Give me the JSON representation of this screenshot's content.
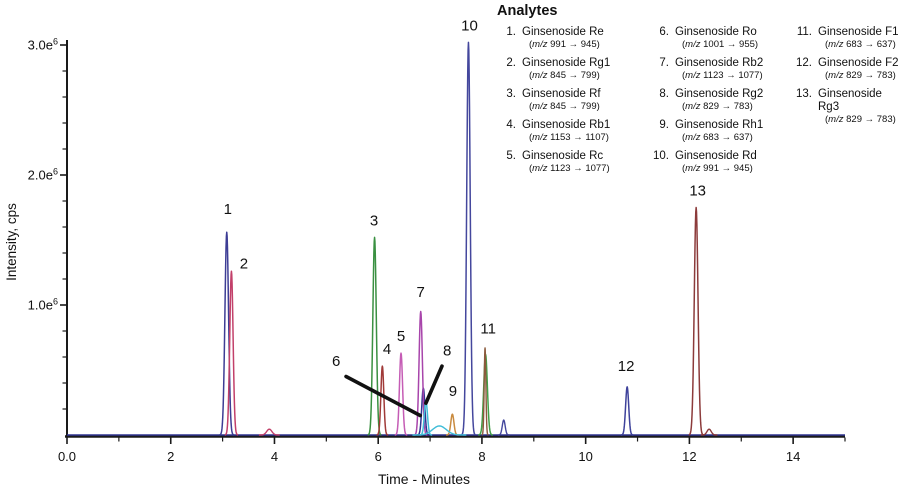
{
  "legend": {
    "title": "Analytes",
    "columns": [
      [
        {
          "num": "1.",
          "name": "Ginsenoside Re",
          "mz_prefix": "m/z",
          "mz": "991 → 945"
        },
        {
          "num": "2.",
          "name": "Ginsenoside Rg1",
          "mz_prefix": "m/z",
          "mz": "845 → 799"
        },
        {
          "num": "3.",
          "name": "Ginsenoside Rf",
          "mz_prefix": "m/z",
          "mz": "845 → 799"
        },
        {
          "num": "4.",
          "name": "Ginsenoside Rb1",
          "mz_prefix": "m/z",
          "mz": "1153 → 1107"
        },
        {
          "num": "5.",
          "name": "Ginsenoside Rc",
          "mz_prefix": "m/z",
          "mz": "1123 → 1077"
        }
      ],
      [
        {
          "num": "6.",
          "name": "Ginsenoside Ro",
          "mz_prefix": "m/z",
          "mz": "1001 → 955"
        },
        {
          "num": "7.",
          "name": "Ginsenoside Rb2",
          "mz_prefix": "m/z",
          "mz": "1123 → 1077"
        },
        {
          "num": "8.",
          "name": "Ginsenoside Rg2",
          "mz_prefix": "m/z",
          "mz": "829 → 783"
        },
        {
          "num": "9.",
          "name": "Ginsenoside Rh1",
          "mz_prefix": "m/z",
          "mz": "683 → 637"
        },
        {
          "num": "10.",
          "name": "Ginsenoside Rd",
          "mz_prefix": "m/z",
          "mz": "991 → 945"
        }
      ],
      [
        {
          "num": "11.",
          "name": "Ginsenoside F1",
          "mz_prefix": "m/z",
          "mz": "683 → 637"
        },
        {
          "num": "12.",
          "name": "Ginsenoside F2",
          "mz_prefix": "m/z",
          "mz": "829 → 783"
        },
        {
          "num": "13.",
          "name": "Ginsenoside Rg3",
          "mz_prefix": "m/z",
          "mz": "829 → 783"
        }
      ]
    ]
  },
  "chart_data": {
    "type": "line",
    "title": "Analytes",
    "xlabel": "Time - Minutes",
    "ylabel": "Intensity, cps",
    "xlim_min": [
      0,
      15
    ],
    "ylim_cps": [
      0,
      3050000
    ],
    "grid": false,
    "legend_position": "top-right",
    "x_ticks": {
      "major_values_min": [
        0,
        2,
        4,
        6,
        8,
        10,
        12,
        14
      ],
      "major_labels": [
        "0.0",
        "2",
        "4",
        "6",
        "8",
        "10",
        "12",
        "14"
      ],
      "minor_step_min": 1
    },
    "y_ticks": {
      "major_values_cps": [
        1000000,
        2000000,
        3000000
      ],
      "major_labels": [
        {
          "base": "1.0e",
          "sup": "6"
        },
        {
          "base": "2.0e",
          "sup": "6"
        },
        {
          "base": "3.0e",
          "sup": "6"
        }
      ],
      "minor_step_cps": 200000
    },
    "baseline_color": "#2F3390",
    "peaks": [
      {
        "label": "1",
        "analyte": "Ginsenoside Re",
        "transition": "m/z 991 → 945",
        "rt_min": 3.08,
        "apex_cps": 1560000,
        "sigma_min": 0.035,
        "color": "#3D3D95"
      },
      {
        "label": "2",
        "analyte": "Ginsenoside Rg1",
        "transition": "m/z 845 → 799",
        "rt_min": 3.17,
        "apex_cps": 1260000,
        "sigma_min": 0.032,
        "color": "#C2406A"
      },
      {
        "label": "3",
        "analyte": "Ginsenoside Rf",
        "transition": "m/z 845 → 799",
        "rt_min": 5.93,
        "apex_cps": 1520000,
        "sigma_min": 0.033,
        "color": "#3A9041"
      },
      {
        "label": "4",
        "analyte": "Ginsenoside Rb1",
        "transition": "m/z 1153 → 1107",
        "rt_min": 6.08,
        "apex_cps": 530000,
        "sigma_min": 0.028,
        "color": "#A03A38"
      },
      {
        "label": "5",
        "analyte": "Ginsenoside Rc",
        "transition": "m/z 1123 → 1077",
        "rt_min": 6.44,
        "apex_cps": 630000,
        "sigma_min": 0.03,
        "color": "#C55CB5"
      },
      {
        "label": "6",
        "analyte": "Ginsenoside Ro",
        "transition": "m/z 1001 → 955",
        "rt_min": 6.87,
        "apex_cps": 360000,
        "sigma_min": 0.03,
        "color": "#2E3390"
      },
      {
        "label": "7",
        "analyte": "Ginsenoside Rb2",
        "transition": "m/z 1123 → 1077",
        "rt_min": 6.82,
        "apex_cps": 950000,
        "sigma_min": 0.032,
        "color": "#A845AB"
      },
      {
        "label": "8",
        "analyte": "Ginsenoside Rg2",
        "transition": "m/z 829 → 783",
        "rt_min": 6.92,
        "apex_cps": 260000,
        "sigma_min": 0.03,
        "color": "#3FBDD8"
      },
      {
        "label": "9",
        "analyte": "Ginsenoside Rh1",
        "transition": "m/z 683 → 637",
        "rt_min": 7.43,
        "apex_cps": 160000,
        "sigma_min": 0.03,
        "color": "#C98B40"
      },
      {
        "label": "10",
        "analyte": "Ginsenoside Rd",
        "transition": "m/z 991 → 945",
        "rt_min": 7.74,
        "apex_cps": 3020000,
        "sigma_min": 0.034,
        "color": "#44479D"
      },
      {
        "label": "11",
        "analyte": "Ginsenoside F1",
        "transition": "m/z 683 → 637",
        "rt_min": 8.07,
        "apex_cps": 620000,
        "sigma_min": 0.035,
        "color": "#41A048"
      },
      {
        "label": "12",
        "analyte": "Ginsenoside F2",
        "transition": "m/z 829 → 783",
        "rt_min": 10.8,
        "apex_cps": 370000,
        "sigma_min": 0.03,
        "color": "#3E429B"
      },
      {
        "label": "13",
        "analyte": "Ginsenoside Rg3",
        "transition": "m/z 829 → 783",
        "rt_min": 12.13,
        "apex_cps": 1750000,
        "sigma_min": 0.036,
        "color": "#8C3B3B"
      }
    ],
    "minor_features": [
      {
        "rt_min": 3.9,
        "apex_cps": 45000,
        "sigma_min": 0.05,
        "color": "#C2406A"
      },
      {
        "rt_min": 7.18,
        "apex_cps": 70000,
        "sigma_min": 0.13,
        "color": "#3FBDD8"
      },
      {
        "rt_min": 8.06,
        "apex_cps": 670000,
        "sigma_min": 0.016,
        "color": "#8B5A3C"
      },
      {
        "rt_min": 8.42,
        "apex_cps": 115000,
        "sigma_min": 0.028,
        "color": "#44479D"
      },
      {
        "rt_min": 12.38,
        "apex_cps": 45000,
        "sigma_min": 0.04,
        "color": "#8C3B3B"
      }
    ],
    "annotations": [
      {
        "label": "1",
        "t_min": 3.1,
        "i_cps": 1740000
      },
      {
        "label": "2",
        "t_min": 3.41,
        "i_cps": 1320000
      },
      {
        "label": "3",
        "t_min": 5.92,
        "i_cps": 1650000
      },
      {
        "label": "4",
        "t_min": 6.17,
        "i_cps": 660000
      },
      {
        "label": "5",
        "t_min": 6.44,
        "i_cps": 760000
      },
      {
        "label": "6",
        "t_min": 5.19,
        "i_cps": 570000,
        "leader": {
          "t1_min": 5.38,
          "i1_cps": 450000,
          "t2_min": 6.81,
          "i2_cps": 150000
        }
      },
      {
        "label": "7",
        "t_min": 6.82,
        "i_cps": 1100000
      },
      {
        "label": "8",
        "t_min": 7.33,
        "i_cps": 650000,
        "leader": {
          "t1_min": 7.23,
          "i1_cps": 530000,
          "t2_min": 6.92,
          "i2_cps": 245000
        }
      },
      {
        "label": "9",
        "t_min": 7.44,
        "i_cps": 340000
      },
      {
        "label": "10",
        "t_min": 7.76,
        "i_cps": 3150000
      },
      {
        "label": "12",
        "t_min": 10.78,
        "i_cps": 530000
      },
      {
        "label": "11",
        "t_min": 8.12,
        "i_cps": 820000
      },
      {
        "label": "13",
        "t_min": 12.16,
        "i_cps": 1880000
      }
    ]
  }
}
